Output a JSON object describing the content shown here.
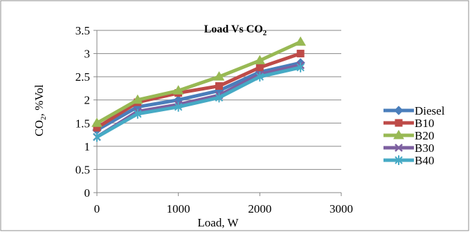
{
  "chart_data": {
    "type": "line",
    "title": "Load Vs CO",
    "title_subscript": "2",
    "xlabel": "Load, W",
    "ylabel": "CO",
    "ylabel_subscript": "2",
    "ylabel_suffix": ", %Vol",
    "xlim": [
      0,
      3000
    ],
    "ylim": [
      0,
      3.5
    ],
    "x_ticks": [
      0,
      1000,
      2000,
      3000
    ],
    "y_ticks": [
      0,
      0.5,
      1,
      1.5,
      2,
      2.5,
      3,
      3.5
    ],
    "grid": "horizontal",
    "legend_position": "right",
    "x": [
      0,
      500,
      1000,
      1500,
      2000,
      2500
    ],
    "series": [
      {
        "name": "Diesel",
        "marker": "diamond",
        "color": "#4a7ebb",
        "values": [
          1.35,
          1.85,
          2.0,
          2.2,
          2.6,
          2.8
        ]
      },
      {
        "name": "B10",
        "marker": "square",
        "color": "#be4b48",
        "values": [
          1.4,
          1.95,
          2.15,
          2.3,
          2.7,
          3.0
        ]
      },
      {
        "name": "B20",
        "marker": "triangle",
        "color": "#98b954",
        "values": [
          1.5,
          2.0,
          2.2,
          2.5,
          2.85,
          3.25
        ]
      },
      {
        "name": "B30",
        "marker": "x",
        "color": "#7d60a0",
        "values": [
          1.2,
          1.75,
          1.9,
          2.1,
          2.55,
          2.75
        ]
      },
      {
        "name": "B40",
        "marker": "star",
        "color": "#46aac5",
        "values": [
          1.2,
          1.7,
          1.85,
          2.05,
          2.5,
          2.7
        ]
      }
    ]
  }
}
